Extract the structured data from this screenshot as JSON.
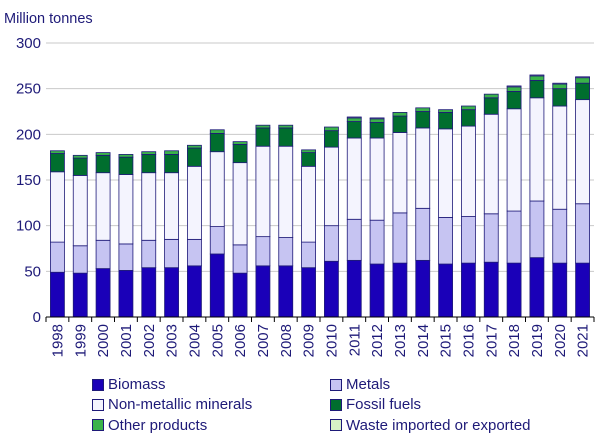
{
  "chart_data": {
    "type": "bar",
    "stacked": true,
    "unit_label": "Million tonnes",
    "ylim": [
      0,
      300
    ],
    "yticks": [
      0,
      50,
      100,
      150,
      200,
      250,
      300
    ],
    "grid": true,
    "legend_position": "bottom",
    "categories": [
      "1998",
      "1999",
      "2000",
      "2001",
      "2002",
      "2003",
      "2004",
      "2005",
      "2006",
      "2007",
      "2008",
      "2009",
      "2010",
      "2011",
      "2012",
      "2013",
      "2014",
      "2015",
      "2016",
      "2017",
      "2018",
      "2019",
      "2020",
      "2021"
    ],
    "series": [
      {
        "name": "Biomass",
        "color": "#1a00b8",
        "values": [
          49,
          48,
          53,
          51,
          54,
          54,
          56,
          69,
          48,
          56,
          56,
          54,
          61,
          62,
          58,
          59,
          62,
          58,
          59,
          60,
          59,
          65,
          59,
          59
        ]
      },
      {
        "name": "Metals",
        "color": "#c6c4f2",
        "values": [
          33,
          30,
          31,
          29,
          30,
          31,
          29,
          30,
          31,
          32,
          31,
          28,
          39,
          45,
          48,
          55,
          57,
          51,
          51,
          53,
          57,
          62,
          59,
          65
        ]
      },
      {
        "name": "Non-metallic minerals",
        "color": "#f4f4fe",
        "values": [
          77,
          77,
          74,
          76,
          74,
          73,
          80,
          82,
          90,
          99,
          100,
          83,
          86,
          89,
          90,
          88,
          88,
          97,
          99,
          109,
          112,
          113,
          113,
          114
        ]
      },
      {
        "name": "Fossil fuels",
        "color": "#006e2e",
        "values": [
          20,
          19,
          19,
          19,
          20,
          20,
          20,
          20,
          20,
          20,
          20,
          15,
          18,
          18,
          17,
          18,
          18,
          18,
          18,
          18,
          19,
          19,
          19,
          18
        ]
      },
      {
        "name": "Other products",
        "color": "#3bb34a",
        "values": [
          3,
          3,
          3,
          3,
          3,
          4,
          3,
          4,
          3,
          3,
          3,
          3,
          4,
          4,
          4,
          4,
          4,
          3,
          4,
          4,
          5,
          5,
          5,
          6
        ]
      },
      {
        "name": "Waste imported or exported",
        "color": "#d7f2c6",
        "values": [
          0,
          0,
          0,
          0,
          0,
          0,
          0,
          0,
          0,
          0,
          0,
          0,
          0,
          1,
          1,
          0,
          0,
          0,
          0,
          0,
          1,
          1,
          1,
          1
        ]
      }
    ]
  }
}
